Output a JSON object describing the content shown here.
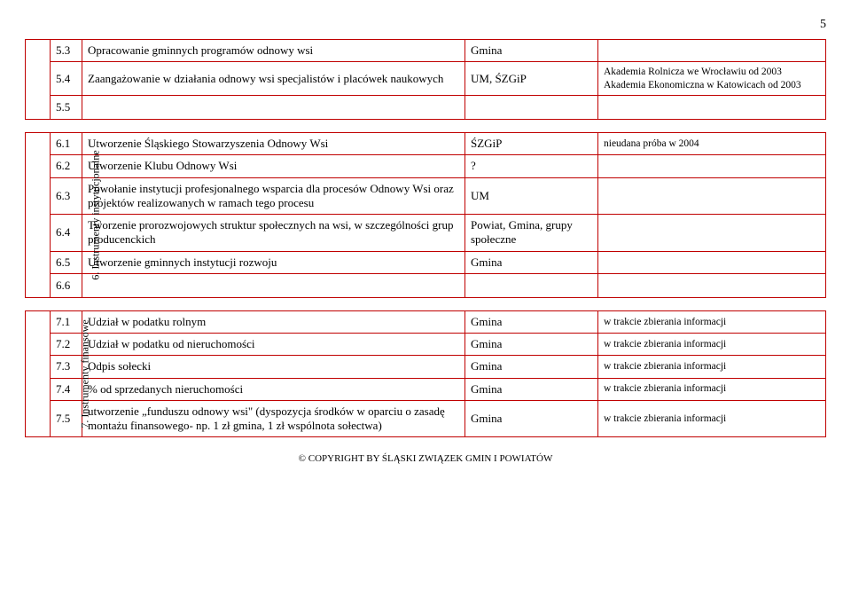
{
  "page_number": "5",
  "footer": "© COPYRIGHT BY ŚLĄSKI ZWIĄZEK GMIN I POWIATÓW",
  "block1": {
    "rows": [
      {
        "num": "5.3",
        "desc": "Opracowanie gminnych programów odnowy wsi",
        "resp": "Gmina",
        "note": ""
      },
      {
        "num": "5.4",
        "desc": "Zaangażowanie w działania odnowy wsi specjalistów i placówek naukowych",
        "resp": "UM, ŚZGiP",
        "note": "Akademia Rolnicza we Wrocławiu od 2003 Akademia Ekonomiczna w Katowicach od 2003"
      },
      {
        "num": "5.5",
        "desc": "",
        "resp": "",
        "note": ""
      }
    ]
  },
  "block2": {
    "side": "6. Instrumenty instytucjonalne",
    "rows": [
      {
        "num": "6.1",
        "desc": "Utworzenie Śląskiego Stowarzyszenia Odnowy Wsi",
        "resp": "ŚZGiP",
        "note": "nieudana próba w 2004"
      },
      {
        "num": "6.2",
        "desc": "Utworzenie Klubu Odnowy Wsi",
        "resp": "?",
        "note": ""
      },
      {
        "num": "6.3",
        "desc": "Powołanie instytucji profesjonalnego wsparcia dla procesów Odnowy Wsi oraz projektów realizowanych w ramach tego procesu",
        "resp": "UM",
        "note": ""
      },
      {
        "num": "6.4",
        "desc": "Tworzenie prorozwojowych struktur społecznych na wsi, w szczególności grup producenckich",
        "resp": "Powiat, Gmina, grupy społeczne",
        "note": ""
      },
      {
        "num": "6.5",
        "desc": "Utworzenie gminnych instytucji rozwoju",
        "resp": "Gmina",
        "note": ""
      },
      {
        "num": "6.6",
        "desc": "",
        "resp": "",
        "note": ""
      }
    ]
  },
  "block3": {
    "side": "7. Instrumenty finansowe",
    "rows": [
      {
        "num": "7.1",
        "desc": "Udział w podatku rolnym",
        "resp": "Gmina",
        "note": "w trakcie zbierania informacji"
      },
      {
        "num": "7.2",
        "desc": "Udział w podatku od nieruchomości",
        "resp": "Gmina",
        "note": "w trakcie zbierania informacji"
      },
      {
        "num": "7.3",
        "desc": "Odpis sołecki",
        "resp": "Gmina",
        "note": "w trakcie zbierania informacji"
      },
      {
        "num": "7.4",
        "desc": "% od sprzedanych nieruchomości",
        "resp": "Gmina",
        "note": "w trakcie zbierania informacji"
      },
      {
        "num": "7.5",
        "desc": "utworzenie „funduszu odnowy wsi\" (dyspozycja środków w oparciu o zasadę montażu finansowego- np. 1 zł gmina, 1 zł wspólnota sołectwa)",
        "resp": "Gmina",
        "note": "w trakcie zbierania informacji"
      }
    ]
  }
}
